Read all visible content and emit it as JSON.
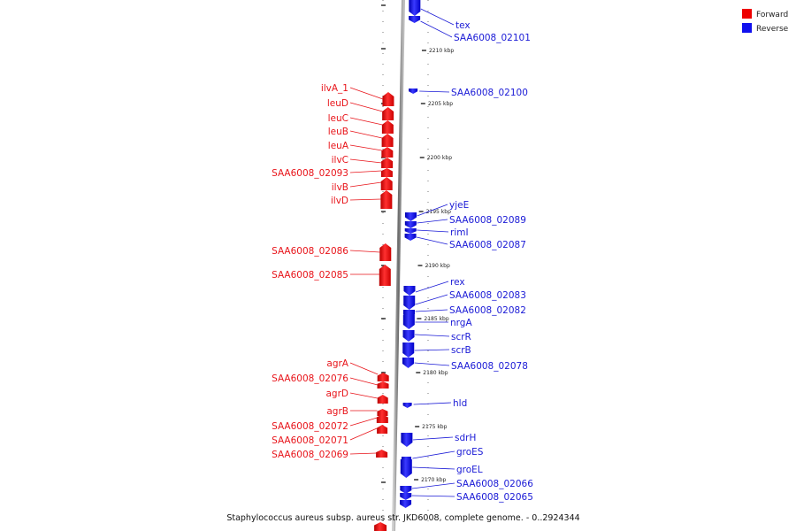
{
  "caption": "Staphylococcus aureus subsp. aureus str. JKD6008, complete genome. - 0..2924344",
  "legend": [
    {
      "label": "Forward",
      "color": "#ee0000"
    },
    {
      "label": "Reverse",
      "color": "#1010ee"
    }
  ],
  "scale_ticks": [
    "2210 kbp",
    "2205 kbp",
    "2200 kbp",
    "2195 kbp",
    "2190 kbp",
    "2185 kbp",
    "2180 kbp",
    "2175 kbp",
    "2170 kbp"
  ],
  "forward_genes": [
    "ilvA_1",
    "leuD",
    "leuC",
    "leuB",
    "leuA",
    "ilvC",
    "SAA6008_02093",
    "ilvB",
    "ilvD",
    "SAA6008_02086",
    "SAA6008_02085",
    "agrA",
    "SAA6008_02076",
    "agrD",
    "agrB",
    "SAA6008_02072",
    "SAA6008_02071",
    "SAA6008_02069"
  ],
  "reverse_genes": [
    "tex",
    "SAA6008_02101",
    "SAA6008_02100",
    "yjeE",
    "SAA6008_02089",
    "rimI",
    "SAA6008_02087",
    "rex",
    "SAA6008_02083",
    "SAA6008_02082",
    "nrgA",
    "scrR",
    "scrB",
    "SAA6008_02078",
    "hld",
    "sdrH",
    "groES",
    "groEL",
    "SAA6008_02066",
    "SAA6008_02065"
  ]
}
